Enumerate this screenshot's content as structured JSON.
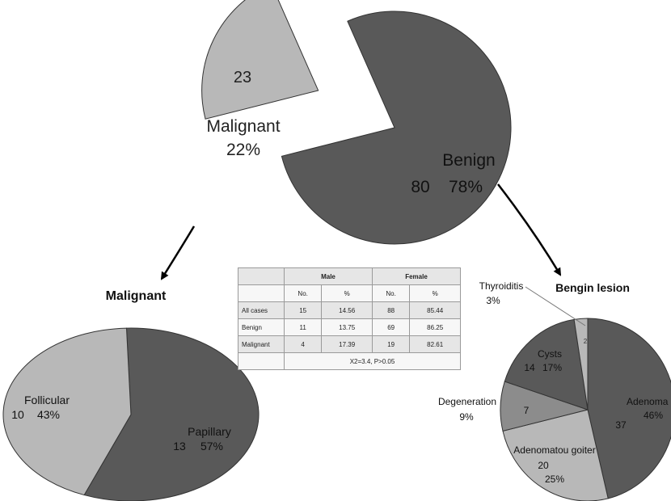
{
  "chart_data": [
    {
      "type": "pie",
      "slices": [
        {
          "label": "Malignant",
          "value": 23,
          "percent": "22%"
        },
        {
          "label": "Benign",
          "value": 80,
          "percent": "78%"
        }
      ]
    },
    {
      "type": "pie",
      "title": "Malignant",
      "slices": [
        {
          "label": "Papillary",
          "value": 13,
          "percent": "57%"
        },
        {
          "label": "Follicular",
          "value": 10,
          "percent": "43%"
        }
      ]
    },
    {
      "type": "pie",
      "title": "Bengin lesion",
      "slices": [
        {
          "label": "Adenoma",
          "value": 37,
          "percent": "46%"
        },
        {
          "label": "Adenomatou goiter",
          "value": 20,
          "percent": "25%"
        },
        {
          "label": "Degeneration",
          "value": 7,
          "percent": "9%"
        },
        {
          "label": "Cysts",
          "value": 14,
          "percent": "17%"
        },
        {
          "label": "Thyroiditis",
          "value": 2,
          "percent": "3%"
        }
      ]
    },
    {
      "type": "table",
      "header_groups": [
        "Male",
        "Female"
      ],
      "subheaders": [
        "No.",
        "%",
        "No.",
        "%"
      ],
      "rows": [
        {
          "label": "All cases",
          "cells": [
            "15",
            "14.56",
            "88",
            "85.44"
          ]
        },
        {
          "label": "Benign",
          "cells": [
            "11",
            "13.75",
            "69",
            "86.25"
          ]
        },
        {
          "label": "Malignant",
          "cells": [
            "4",
            "17.39",
            "19",
            "82.61"
          ]
        }
      ],
      "footnote": "X2=3.4, P>0.05"
    }
  ],
  "colors": {
    "dark_slice": "#595959",
    "light_slice": "#b8b8b8",
    "mid_slice": "#8c8c8c",
    "outline": "#333333",
    "arrow": "#000000"
  }
}
